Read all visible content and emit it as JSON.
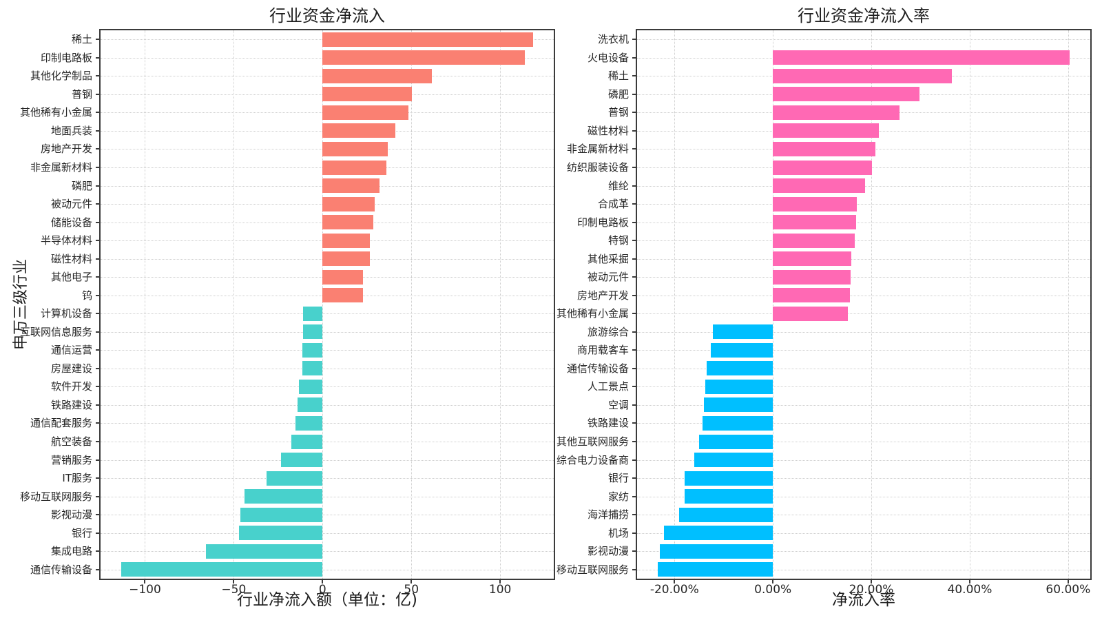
{
  "style": {
    "background": "#ffffff",
    "spine_color": "#3a3a3a",
    "grid_color": "#cdcdcd",
    "text_color": "#262626"
  },
  "chart_data": [
    {
      "type": "bar",
      "orientation": "horizontal",
      "title": "行业资金净流入",
      "xlabel": "行业净流入额（单位：亿)",
      "ylabel": "申万三级行业",
      "legend": null,
      "grid": true,
      "xlim": [
        -125.0,
        130.2
      ],
      "xticks": [
        {
          "v": -100,
          "label": "−100"
        },
        {
          "v": -50,
          "label": "−50"
        },
        {
          "v": 0,
          "label": "0"
        },
        {
          "v": 50,
          "label": "50"
        },
        {
          "v": 100,
          "label": "100"
        }
      ],
      "colors": {
        "positive": "#fa8072",
        "negative": "#48d1cc"
      },
      "categories": [
        "稀土",
        "印制电路板",
        "其他化学制品",
        "普钢",
        "其他稀有小金属",
        "地面兵装",
        "房地产开发",
        "非金属新材料",
        "磷肥",
        "被动元件",
        "储能设备",
        "半导体材料",
        "磁性材料",
        "其他电子",
        "钨",
        "计算机设备",
        "互联网信息服务",
        "通信运营",
        "房屋建设",
        "软件开发",
        "铁路建设",
        "通信配套服务",
        "航空装备",
        "营销服务",
        "IT服务",
        "移动互联网服务",
        "影视动漫",
        "银行",
        "集成电路",
        "通信传输设备"
      ],
      "values": [
        118.6,
        113.8,
        61.6,
        50.4,
        48.2,
        41.0,
        36.8,
        36.1,
        32.2,
        29.2,
        28.6,
        26.7,
        26.6,
        22.9,
        22.8,
        -11.0,
        -11.1,
        -11.4,
        -11.5,
        -13.3,
        -14.2,
        -15.1,
        -17.7,
        -23.2,
        -31.6,
        -43.8,
        -46.1,
        -47.0,
        -65.7,
        -113.4
      ]
    },
    {
      "type": "bar",
      "orientation": "horizontal",
      "title": "行业资金净流入率",
      "xlabel": "净流入率",
      "ylabel": "",
      "legend": null,
      "grid": true,
      "xlim": [
        -27.6,
        64.5
      ],
      "xticks": [
        {
          "v": -20,
          "label": "-20.00%"
        },
        {
          "v": 0,
          "label": "0.00%"
        },
        {
          "v": 20,
          "label": "20.00%"
        },
        {
          "v": 40,
          "label": "40.00%"
        },
        {
          "v": 60,
          "label": "60.00%"
        }
      ],
      "colors": {
        "positive": "#ff69b4",
        "negative": "#00bfff"
      },
      "categories": [
        "洗衣机",
        "火电设备",
        "稀土",
        "磷肥",
        "普钢",
        "磁性材料",
        "非金属新材料",
        "纺织服装设备",
        "维纶",
        "合成革",
        "印制电路板",
        "特钢",
        "其他采掘",
        "被动元件",
        "房地产开发",
        "其他稀有小金属",
        "旅游综合",
        "商用载客车",
        "通信传输设备",
        "人工景点",
        "空调",
        "铁路建设",
        "其他互联网服务",
        "综合电力设备商",
        "银行",
        "家纺",
        "海洋捕捞",
        "机场",
        "影视动漫",
        "移动互联网服务"
      ],
      "values": [
        0.0,
        60.3,
        36.3,
        29.8,
        25.8,
        21.6,
        20.9,
        20.2,
        18.7,
        17.0,
        16.9,
        16.6,
        16.0,
        15.8,
        15.6,
        15.3,
        -12.2,
        -12.6,
        -13.4,
        -13.8,
        -14.0,
        -14.3,
        -15.0,
        -16.0,
        -17.9,
        -18.0,
        -19.1,
        -22.2,
        -23.0,
        -23.4
      ]
    }
  ]
}
